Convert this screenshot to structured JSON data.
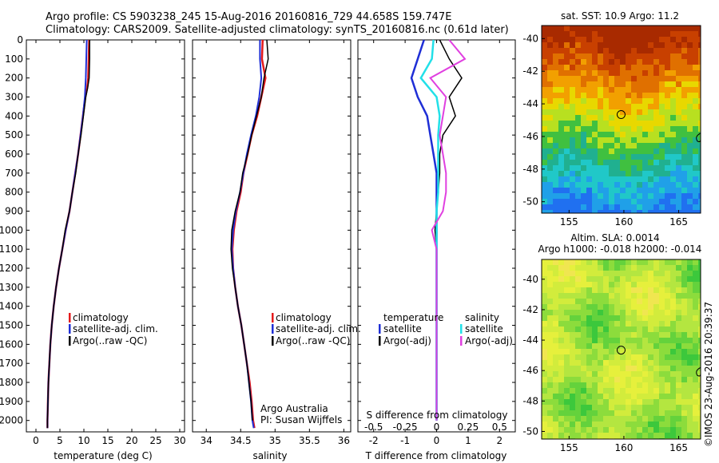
{
  "header": {
    "line1": "Argo profile: CS 5903238_245 15-Aug-2016 20160816_729 44.658S 159.747E",
    "line2": "Climatology: CARS2009. Satellite-adjusted climatology: synTS_20160816.nc (0.61d later)"
  },
  "colors": {
    "climatology": "#e41a1c",
    "satellite": "#1f2fd6",
    "argo": "#000000",
    "satellite_salinity": "#22e0e8",
    "argo_salinity_diff": "#e040e0"
  },
  "panels": {
    "temperature": {
      "xlabel": "temperature (deg C)",
      "legend": [
        "climatology",
        "satellite-adj. clim.",
        "Argo(..raw -QC)"
      ]
    },
    "salinity": {
      "xlabel": "salinity",
      "legend": [
        "climatology",
        "satellite-adj. clim.",
        "Argo(..raw -QC)"
      ],
      "annotation": [
        "Argo Australia",
        "PI: Susan Wijffels"
      ]
    },
    "difference": {
      "xlabel": "T difference from climatology",
      "top_label": "S difference from climatology",
      "legend_temperature": [
        "temperature",
        "satellite",
        "Argo(-adj)"
      ],
      "legend_salinity": [
        "salinity",
        "satellite",
        "Argo(-adj)"
      ]
    },
    "sst_map": {
      "title": "sat. SST: 10.9 Argo: 11.2"
    },
    "sla_map": {
      "title1": "Altim. SLA: 0.0014",
      "title2": "Argo h1000: -0.018 h2000: -0.014"
    }
  },
  "credit": "©IMOS 23-Aug-2016 20:39:37",
  "chart_data": [
    {
      "type": "line",
      "title": "",
      "xlabel": "temperature (deg C)",
      "ylabel": "",
      "xlim": [
        -2,
        31
      ],
      "ylim": [
        2060,
        0
      ],
      "xticks": [
        0,
        5,
        10,
        15,
        20,
        25,
        30
      ],
      "yticks": [
        0,
        100,
        200,
        300,
        400,
        500,
        600,
        700,
        800,
        900,
        1000,
        1100,
        1200,
        1300,
        1400,
        1500,
        1600,
        1700,
        1800,
        1900,
        2000
      ],
      "series": [
        {
          "name": "climatology",
          "x": [
            11.1,
            11.0,
            10.9,
            10.7,
            10.3,
            9.8,
            9.3,
            8.8,
            8.2,
            7.6,
            7.0,
            6.2,
            5.5,
            4.8,
            4.2,
            3.7,
            3.3,
            3.0,
            2.8,
            2.6,
            2.5,
            2.4,
            2.4
          ],
          "y": [
            0,
            100,
            200,
            250,
            300,
            400,
            500,
            600,
            700,
            800,
            900,
            1000,
            1100,
            1200,
            1300,
            1400,
            1500,
            1600,
            1700,
            1800,
            1900,
            2000,
            2040
          ]
        },
        {
          "name": "satellite-adj. clim.",
          "x": [
            10.6,
            10.5,
            10.4,
            10.3,
            10.2,
            9.8,
            9.3,
            8.8,
            8.2,
            7.6,
            7.0,
            6.2,
            5.5,
            4.8,
            4.2,
            3.7,
            3.3,
            3.0,
            2.8,
            2.6,
            2.5,
            2.4,
            2.4
          ],
          "y": [
            0,
            100,
            200,
            250,
            300,
            400,
            500,
            600,
            700,
            800,
            900,
            1000,
            1100,
            1200,
            1300,
            1400,
            1500,
            1600,
            1700,
            1800,
            1900,
            2000,
            2040
          ]
        },
        {
          "name": "Argo(..raw -QC)",
          "x": [
            11.2,
            11.2,
            11.1,
            10.8,
            10.4,
            9.9,
            9.4,
            8.8,
            8.3,
            7.6,
            7.0,
            6.1,
            5.5,
            4.8,
            4.2,
            3.7,
            3.3,
            3.0,
            2.8,
            2.6,
            2.5,
            2.4,
            2.4
          ],
          "y": [
            0,
            100,
            200,
            250,
            300,
            400,
            500,
            600,
            700,
            800,
            900,
            1000,
            1100,
            1200,
            1300,
            1400,
            1500,
            1600,
            1700,
            1800,
            1900,
            2000,
            2040
          ]
        }
      ]
    },
    {
      "type": "line",
      "title": "",
      "xlabel": "salinity",
      "ylabel": "",
      "xlim": [
        33.8,
        36.1
      ],
      "ylim": [
        2060,
        0
      ],
      "xticks": [
        34,
        34.5,
        35,
        35.5,
        36
      ],
      "series": [
        {
          "name": "climatology",
          "x": [
            34.82,
            34.81,
            34.86,
            34.8,
            34.74,
            34.66,
            34.6,
            34.54,
            34.5,
            34.44,
            34.4,
            34.38,
            34.39,
            34.42,
            34.46,
            34.51,
            34.55,
            34.59,
            34.63,
            34.66,
            34.68,
            34.7
          ],
          "y": [
            0,
            100,
            200,
            300,
            400,
            500,
            600,
            700,
            800,
            900,
            1000,
            1100,
            1200,
            1300,
            1400,
            1500,
            1600,
            1700,
            1800,
            1900,
            2000,
            2040
          ]
        },
        {
          "name": "satellite-adj. clim.",
          "x": [
            34.78,
            34.78,
            34.8,
            34.77,
            34.72,
            34.65,
            34.59,
            34.54,
            34.49,
            34.43,
            34.39,
            34.37,
            34.39,
            34.42,
            34.46,
            34.51,
            34.55,
            34.59,
            34.62,
            34.65,
            34.67,
            34.69
          ],
          "y": [
            0,
            100,
            200,
            300,
            400,
            500,
            600,
            700,
            800,
            900,
            1000,
            1100,
            1200,
            1300,
            1400,
            1500,
            1600,
            1700,
            1800,
            1900,
            2000,
            2040
          ]
        },
        {
          "name": "Argo(..raw -QC)",
          "x": [
            34.88,
            34.9,
            34.84,
            34.8,
            34.73,
            34.66,
            34.6,
            34.53,
            34.49,
            34.42,
            34.37,
            34.36,
            34.38,
            34.42,
            34.46,
            34.51,
            34.55,
            34.59,
            34.62,
            34.65,
            34.67
          ],
          "y": [
            0,
            100,
            200,
            300,
            400,
            500,
            600,
            700,
            800,
            900,
            1000,
            1100,
            1200,
            1300,
            1400,
            1500,
            1600,
            1700,
            1800,
            1900,
            2000
          ]
        }
      ]
    },
    {
      "type": "line",
      "title": "",
      "xlabel": "T difference from climatology",
      "top_axis_label": "S difference from climatology",
      "ylabel": "",
      "xlim": [
        -2.5,
        2.5
      ],
      "ylim": [
        2060,
        0
      ],
      "xticks": [
        -2,
        -1,
        0,
        1,
        2
      ],
      "top_xticks": [
        "-0.5",
        "-0.25",
        "0",
        "0.25",
        "0.5"
      ],
      "series": [
        {
          "name": "temperature satellite",
          "x": [
            -0.4,
            -0.6,
            -0.8,
            -0.6,
            -0.3,
            -0.2,
            -0.1,
            0.0,
            0.0,
            0.0,
            0.0,
            0.0,
            0.0,
            0.0,
            0.0,
            0.0,
            0.0,
            0.0,
            0.0,
            0.0,
            0.0
          ],
          "y": [
            0,
            100,
            200,
            300,
            400,
            500,
            600,
            700,
            800,
            900,
            1000,
            1100,
            1200,
            1300,
            1400,
            1500,
            1600,
            1700,
            1800,
            1900,
            2000
          ]
        },
        {
          "name": "temperature Argo(-adj)",
          "x": [
            0.1,
            0.4,
            0.8,
            0.4,
            0.6,
            0.2,
            0.1,
            0.1,
            0.05,
            0.0,
            -0.05,
            0.0,
            0.0,
            0.0,
            0.0,
            0.0,
            0.0,
            0.0,
            0.0,
            0.0,
            0.0
          ],
          "y": [
            0,
            100,
            200,
            300,
            400,
            500,
            600,
            700,
            800,
            900,
            1000,
            1100,
            1200,
            1300,
            1400,
            1500,
            1600,
            1700,
            1800,
            1900,
            2000
          ]
        },
        {
          "name": "salinity satellite",
          "x": [
            -0.1,
            -0.15,
            -0.5,
            0.0,
            0.1,
            0.05,
            0.05,
            0.05,
            0.05,
            0.0,
            0.0,
            0.0,
            0.0,
            0.0,
            0.0,
            0.0,
            0.0,
            0.0,
            0.0,
            0.0,
            0.0
          ],
          "y": [
            0,
            100,
            200,
            300,
            400,
            500,
            600,
            700,
            800,
            900,
            1000,
            1100,
            1200,
            1300,
            1400,
            1500,
            1600,
            1700,
            1800,
            1900,
            2000
          ]
        },
        {
          "name": "salinity Argo(-adj)",
          "x": [
            0.4,
            0.9,
            -0.2,
            0.3,
            0.2,
            0.1,
            0.2,
            0.3,
            0.3,
            0.2,
            -0.15,
            0.0,
            0.0,
            0.0,
            0.0,
            0.0,
            0.0,
            0.0,
            0.0,
            0.0,
            0.0
          ],
          "y": [
            0,
            100,
            200,
            300,
            400,
            500,
            600,
            700,
            800,
            900,
            1000,
            1100,
            1200,
            1300,
            1400,
            1500,
            1600,
            1700,
            1800,
            1900,
            2000
          ]
        }
      ]
    },
    {
      "type": "heatmap",
      "title": "sat. SST: 10.9 Argo: 11.2",
      "xlim": [
        152.5,
        167
      ],
      "ylim": [
        -50.7,
        -39.2
      ],
      "xticks": [
        155,
        160,
        165
      ],
      "yticks": [
        -40,
        -42,
        -44,
        -46,
        -48,
        -50
      ],
      "marker": {
        "lon": 159.747,
        "lat": -44.658
      }
    },
    {
      "type": "heatmap",
      "title": "Altim. SLA: 0.0014",
      "xlim": [
        152.5,
        167
      ],
      "ylim": [
        -50.5,
        -38.7
      ],
      "xticks": [
        155,
        160,
        165
      ],
      "yticks": [
        -40,
        -42,
        -44,
        -46,
        -48,
        -50
      ],
      "marker": {
        "lon": 159.747,
        "lat": -44.658
      }
    }
  ]
}
